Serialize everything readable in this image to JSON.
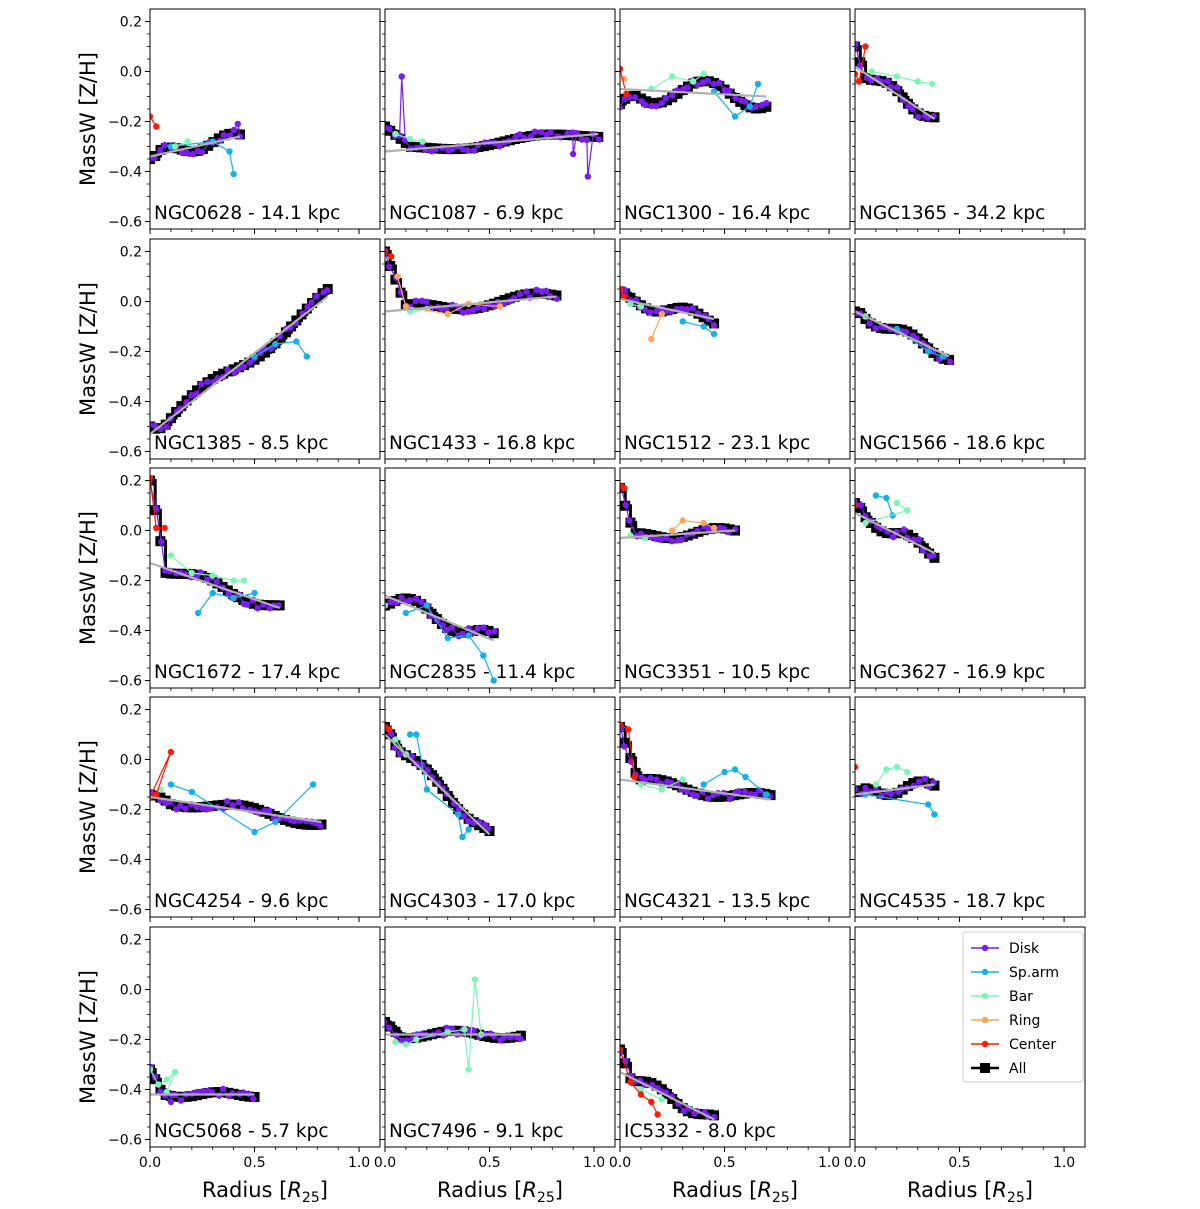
{
  "chart_data": {
    "type": "line",
    "grid": "4x5 panels",
    "ylabel": "MassW [Z/H]",
    "xlabel": "Radius [R25]",
    "xlim": [
      0.0,
      1.1
    ],
    "ylim": [
      -0.63,
      0.25
    ],
    "xticks": [
      0.0,
      0.5,
      1.0
    ],
    "xtick_labels": [
      "0.0",
      "0.5",
      "1.0"
    ],
    "yticks": [
      0.2,
      0.0,
      -0.2,
      -0.4,
      -0.6
    ],
    "ytick_labels": [
      "0.2",
      "0.0",
      "−0.2",
      "−0.4",
      "−0.6"
    ],
    "legend": {
      "position": "upper-right of last panel",
      "entries": [
        {
          "name": "Disk",
          "color": "#7a1cf0"
        },
        {
          "name": "Sp.arm",
          "color": "#15b0e8"
        },
        {
          "name": "Bar",
          "color": "#7cf5b5"
        },
        {
          "name": "Ring",
          "color": "#f7a85c"
        },
        {
          "name": "Center",
          "color": "#ff1a00"
        },
        {
          "name": "All",
          "color": "#000000"
        }
      ]
    },
    "panels": [
      {
        "name": "NGC0628",
        "title": "NGC0628 - 14.1 kpc",
        "rmax": 0.43,
        "y0": -0.35,
        "fit": [
          -0.34,
          -0.26
        ],
        "wig": 0.02,
        "center": [
          [
            0.0,
            -0.18
          ],
          [
            0.03,
            -0.22
          ]
        ],
        "arm": [
          [
            0.1,
            -0.3
          ],
          [
            0.3,
            -0.28
          ],
          [
            0.38,
            -0.32
          ],
          [
            0.4,
            -0.41
          ]
        ],
        "bar": [
          [
            0.12,
            -0.3
          ],
          [
            0.18,
            -0.28
          ]
        ],
        "disk_ext": [
          [
            0.42,
            -0.21
          ]
        ]
      },
      {
        "name": "NGC1087",
        "title": "NGC1087 - 6.9 kpc",
        "rmax": 1.02,
        "y0": -0.22,
        "fit": [
          -0.32,
          -0.25
        ],
        "wig": 0.015,
        "disk_spike": [
          [
            0.08,
            -0.02
          ]
        ],
        "disk_ext": [
          [
            0.9,
            -0.33
          ],
          [
            0.97,
            -0.42
          ]
        ],
        "bar": [
          [
            0.05,
            -0.25
          ],
          [
            0.12,
            -0.27
          ],
          [
            0.18,
            -0.28
          ]
        ],
        "center": []
      },
      {
        "name": "NGC1300",
        "title": "NGC1300 - 16.4 kpc",
        "rmax": 0.7,
        "y0": -0.13,
        "fit": [
          -0.07,
          -0.1
        ],
        "wig": 0.05,
        "center": [
          [
            0.0,
            0.01
          ],
          [
            0.03,
            -0.09
          ]
        ],
        "ring": [
          [
            0.02,
            -0.03
          ]
        ],
        "bar": [
          [
            0.15,
            -0.07
          ],
          [
            0.25,
            -0.02
          ],
          [
            0.35,
            -0.04
          ],
          [
            0.4,
            -0.01
          ]
        ],
        "arm": [
          [
            0.45,
            -0.08
          ],
          [
            0.55,
            -0.18
          ],
          [
            0.62,
            -0.14
          ],
          [
            0.66,
            -0.05
          ]
        ]
      },
      {
        "name": "NGC1365",
        "title": "NGC1365 - 34.2 kpc",
        "rmax": 0.38,
        "y0": 0.1,
        "fit": [
          0.02,
          -0.19
        ],
        "wig": 0.02,
        "center": [
          [
            0.0,
            -0.01
          ],
          [
            0.02,
            -0.04
          ],
          [
            0.05,
            0.1
          ]
        ],
        "bar": [
          [
            0.08,
            0.0
          ],
          [
            0.2,
            -0.02
          ],
          [
            0.3,
            -0.04
          ],
          [
            0.37,
            -0.05
          ]
        ],
        "ring": [
          [
            0.0,
            -0.04
          ]
        ]
      },
      {
        "name": "NGC1385",
        "title": "NGC1385 - 8.5 kpc",
        "rmax": 0.85,
        "y0": -0.5,
        "fit": [
          -0.53,
          0.02
        ],
        "wig": 0.03,
        "arm": [
          [
            0.5,
            -0.22
          ],
          [
            0.6,
            -0.17
          ],
          [
            0.7,
            -0.16
          ],
          [
            0.75,
            -0.22
          ]
        ],
        "center": []
      },
      {
        "name": "NGC1433",
        "title": "NGC1433 - 16.8 kpc",
        "rmax": 0.82,
        "y0": 0.2,
        "fit": [
          -0.04,
          0.02
        ],
        "wig": 0.02,
        "center": [
          [
            0.0,
            0.2
          ],
          [
            0.03,
            0.18
          ]
        ],
        "ring": [
          [
            0.06,
            0.1
          ],
          [
            0.1,
            -0.02
          ],
          [
            0.3,
            -0.05
          ],
          [
            0.4,
            -0.01
          ],
          [
            0.55,
            -0.02
          ]
        ],
        "bar": [
          [
            0.12,
            -0.04
          ],
          [
            0.2,
            -0.03
          ]
        ]
      },
      {
        "name": "NGC1512",
        "title": "NGC1512 - 23.1 kpc",
        "rmax": 0.45,
        "y0": 0.04,
        "fit": [
          0.01,
          -0.07
        ],
        "wig": 0.02,
        "center": [
          [
            0.0,
            0.05
          ],
          [
            0.02,
            0.02
          ]
        ],
        "ring": [
          [
            0.15,
            -0.15
          ],
          [
            0.2,
            -0.05
          ]
        ],
        "arm": [
          [
            0.3,
            -0.08
          ],
          [
            0.4,
            -0.1
          ],
          [
            0.45,
            -0.13
          ]
        ],
        "bar": [
          [
            0.05,
            -0.01
          ],
          [
            0.1,
            -0.02
          ]
        ]
      },
      {
        "name": "NGC1566",
        "title": "NGC1566 - 18.6 kpc",
        "rmax": 0.45,
        "y0": -0.04,
        "fit": [
          -0.04,
          -0.22
        ],
        "wig": 0.02,
        "arm": [
          [
            0.2,
            -0.11
          ],
          [
            0.35,
            -0.2
          ],
          [
            0.42,
            -0.22
          ]
        ],
        "bar": [
          [
            0.05,
            -0.06
          ]
        ],
        "center": []
      },
      {
        "name": "NGC1672",
        "title": "NGC1672 - 17.4 kpc",
        "rmax": 0.62,
        "y0": 0.2,
        "fit": [
          -0.13,
          -0.31
        ],
        "wig": 0.02,
        "center": [
          [
            0.0,
            0.21
          ],
          [
            0.03,
            0.01
          ],
          [
            0.07,
            0.01
          ]
        ],
        "bar": [
          [
            0.1,
            -0.1
          ],
          [
            0.2,
            -0.17
          ],
          [
            0.3,
            -0.18
          ],
          [
            0.4,
            -0.2
          ],
          [
            0.45,
            -0.2
          ]
        ],
        "arm": [
          [
            0.23,
            -0.33
          ],
          [
            0.3,
            -0.25
          ],
          [
            0.4,
            -0.27
          ],
          [
            0.5,
            -0.25
          ]
        ]
      },
      {
        "name": "NGC2835",
        "title": "NGC2835 - 11.4 kpc",
        "rmax": 0.52,
        "y0": -0.3,
        "fit": [
          -0.26,
          -0.44
        ],
        "wig": 0.03,
        "arm": [
          [
            0.1,
            -0.33
          ],
          [
            0.2,
            -0.3
          ],
          [
            0.3,
            -0.43
          ],
          [
            0.4,
            -0.42
          ],
          [
            0.47,
            -0.5
          ],
          [
            0.52,
            -0.6
          ]
        ],
        "bar": [
          [
            0.0,
            -0.3
          ]
        ],
        "center": []
      },
      {
        "name": "NGC3351",
        "title": "NGC3351 - 10.5 kpc",
        "rmax": 0.55,
        "y0": 0.17,
        "fit": [
          -0.03,
          0.0
        ],
        "wig": 0.015,
        "center": [
          [
            0.0,
            0.18
          ],
          [
            0.02,
            0.17
          ]
        ],
        "ring": [
          [
            0.25,
            0.0
          ],
          [
            0.3,
            0.04
          ],
          [
            0.4,
            0.03
          ],
          [
            0.45,
            0.01
          ]
        ],
        "bar": [
          [
            0.05,
            -0.02
          ],
          [
            0.12,
            -0.03
          ]
        ]
      },
      {
        "name": "NGC3627",
        "title": "NGC3627 - 16.9 kpc",
        "rmax": 0.38,
        "y0": 0.11,
        "fit": [
          0.07,
          -0.09
        ],
        "wig": 0.02,
        "center": [
          [
            0.0,
            0.1
          ]
        ],
        "arm": [
          [
            0.1,
            0.14
          ],
          [
            0.15,
            0.13
          ],
          [
            0.18,
            0.06
          ]
        ],
        "bar": [
          [
            0.2,
            0.11
          ],
          [
            0.25,
            0.08
          ],
          [
            0.05,
            0.03
          ]
        ]
      },
      {
        "name": "NGC4254",
        "title": "NGC4254 - 9.6 kpc",
        "rmax": 0.82,
        "y0": -0.14,
        "fit": [
          -0.15,
          -0.25
        ],
        "wig": 0.02,
        "center": [
          [
            0.0,
            -0.15
          ],
          [
            0.1,
            0.03
          ],
          [
            0.03,
            -0.14
          ]
        ],
        "arm": [
          [
            0.1,
            -0.1
          ],
          [
            0.2,
            -0.13
          ],
          [
            0.5,
            -0.29
          ],
          [
            0.6,
            -0.25
          ],
          [
            0.78,
            -0.1
          ]
        ],
        "bar": [
          [
            0.05,
            -0.12
          ]
        ]
      },
      {
        "name": "NGC4303",
        "title": "NGC4303 - 17.0 kpc",
        "rmax": 0.5,
        "y0": 0.13,
        "fit": [
          0.1,
          -0.3
        ],
        "wig": 0.02,
        "center": [
          [
            0.0,
            0.13
          ],
          [
            0.02,
            0.12
          ]
        ],
        "arm": [
          [
            0.12,
            0.1
          ],
          [
            0.15,
            0.1
          ],
          [
            0.2,
            -0.12
          ],
          [
            0.35,
            -0.22
          ],
          [
            0.37,
            -0.31
          ],
          [
            0.4,
            -0.28
          ]
        ],
        "bar": [
          [
            0.05,
            0.08
          ],
          [
            0.1,
            0.02
          ]
        ]
      },
      {
        "name": "NGC4321",
        "title": "NGC4321 - 13.5 kpc",
        "rmax": 0.72,
        "y0": 0.13,
        "fit": [
          -0.08,
          -0.16
        ],
        "wig": 0.02,
        "center": [
          [
            0.0,
            0.14
          ],
          [
            0.04,
            0.12
          ],
          [
            0.07,
            -0.07
          ]
        ],
        "arm": [
          [
            0.4,
            -0.1
          ],
          [
            0.5,
            -0.05
          ],
          [
            0.55,
            -0.04
          ],
          [
            0.6,
            -0.07
          ],
          [
            0.7,
            -0.14
          ]
        ],
        "bar": [
          [
            0.1,
            -0.1
          ],
          [
            0.2,
            -0.12
          ],
          [
            0.3,
            -0.08
          ]
        ]
      },
      {
        "name": "NGC4535",
        "title": "NGC4535 - 18.7 kpc",
        "rmax": 0.38,
        "y0": -0.13,
        "fit": [
          -0.14,
          -0.1
        ],
        "wig": 0.02,
        "center": [
          [
            0.0,
            -0.03
          ]
        ],
        "bar": [
          [
            0.1,
            -0.1
          ],
          [
            0.15,
            -0.04
          ],
          [
            0.2,
            -0.03
          ],
          [
            0.25,
            -0.05
          ]
        ],
        "arm": [
          [
            0.05,
            -0.14
          ],
          [
            0.35,
            -0.18
          ],
          [
            0.38,
            -0.22
          ]
        ]
      },
      {
        "name": "NGC5068",
        "title": "NGC5068 - 5.7 kpc",
        "rmax": 0.5,
        "y0": -0.32,
        "fit": [
          -0.42,
          -0.42
        ],
        "wig": 0.01,
        "bar": [
          [
            0.0,
            -0.32
          ],
          [
            0.04,
            -0.38
          ],
          [
            0.08,
            -0.36
          ],
          [
            0.12,
            -0.33
          ],
          [
            0.08,
            -0.41
          ]
        ],
        "disk_spike": [
          [
            0.1,
            -0.45
          ]
        ],
        "center": []
      },
      {
        "name": "NGC7496",
        "title": "NGC7496 - 9.1 kpc",
        "rmax": 0.65,
        "y0": -0.13,
        "fit": [
          -0.18,
          -0.18
        ],
        "wig": 0.015,
        "bar": [
          [
            0.05,
            -0.21
          ],
          [
            0.1,
            -0.22
          ],
          [
            0.15,
            -0.2
          ],
          [
            0.3,
            -0.17
          ],
          [
            0.38,
            -0.16
          ],
          [
            0.4,
            -0.32
          ],
          [
            0.43,
            0.04
          ],
          [
            0.46,
            -0.18
          ]
        ],
        "center": []
      },
      {
        "name": "IC5332",
        "title": "IC5332 - 8.0 kpc",
        "rmax": 0.45,
        "y0": -0.24,
        "fit": [
          -0.33,
          -0.52
        ],
        "wig": 0.02,
        "center": [
          [
            0.0,
            -0.24
          ],
          [
            0.05,
            -0.37
          ],
          [
            0.1,
            -0.42
          ],
          [
            0.15,
            -0.45
          ],
          [
            0.18,
            -0.5
          ]
        ],
        "bar": [
          [
            0.1,
            -0.4
          ],
          [
            0.2,
            -0.44
          ]
        ]
      },
      {
        "name": "",
        "title": "",
        "empty": true
      }
    ]
  }
}
